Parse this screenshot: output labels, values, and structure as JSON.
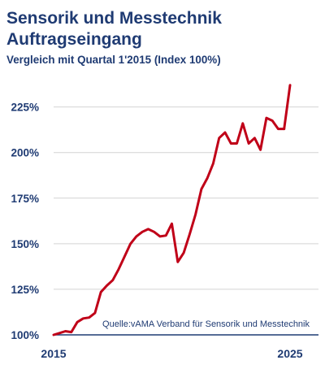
{
  "header": {
    "title_line1": "Sensorik und Messtechnik",
    "title_line2": "Auftragseingang",
    "subtitle": "Vergleich mit Quartal 1'2015 (Index 100%)"
  },
  "colors": {
    "title": "#1f3b73",
    "axis_text": "#1f3b73",
    "line": "#c00018",
    "grid": "#d3d3d3",
    "baseline": "#1f3b73"
  },
  "chart_data": {
    "type": "line",
    "title": "Sensorik und Messtechnik Auftragseingang",
    "subtitle": "Vergleich mit Quartal 1'2015 (Index 100%)",
    "xlabel": "",
    "ylabel": "",
    "ylim": [
      100,
      240
    ],
    "xlim": [
      2015,
      2025
    ],
    "x_ticks": [
      {
        "value": 2015,
        "label": "2015"
      },
      {
        "value": 2025,
        "label": "2025"
      }
    ],
    "y_ticks": [
      {
        "value": 100,
        "label": "100%"
      },
      {
        "value": 125,
        "label": "125%"
      },
      {
        "value": 150,
        "label": "150%"
      },
      {
        "value": 175,
        "label": "175%"
      },
      {
        "value": 200,
        "label": "200%"
      },
      {
        "value": 225,
        "label": "225%"
      }
    ],
    "grid": "horizontal",
    "source": "Quelle:vAMA Verband für Sensorik und Messtechnik",
    "series": [
      {
        "x": [
          2015,
          2015.25,
          2015.5,
          2015.75,
          2016,
          2016.25,
          2016.5,
          2016.75,
          2017,
          2017.25,
          2017.5,
          2017.75,
          2018,
          2018.25,
          2018.5,
          2018.75,
          2019,
          2019.25,
          2019.5,
          2019.75,
          2020,
          2020.25,
          2020.5,
          2020.75,
          2021,
          2021.25,
          2021.5,
          2021.75,
          2022,
          2022.25,
          2022.5,
          2022.75,
          2023,
          2023.25,
          2023.5,
          2023.75,
          2024,
          2024.25,
          2024.5,
          2024.75
        ],
        "values": [
          100,
          101,
          102,
          101.5,
          107,
          109,
          109.5,
          112,
          123.5,
          127,
          130,
          136,
          143,
          150,
          154,
          156.5,
          158,
          156.5,
          154,
          154.5,
          161,
          140,
          145,
          155,
          166,
          180,
          186,
          194,
          208,
          211,
          205,
          205,
          216,
          205,
          208,
          201.5,
          219,
          217.5,
          213,
          213
        ]
      },
      {
        "x": [
          2024.75,
          2025
        ],
        "values": [
          213,
          237
        ]
      }
    ]
  }
}
